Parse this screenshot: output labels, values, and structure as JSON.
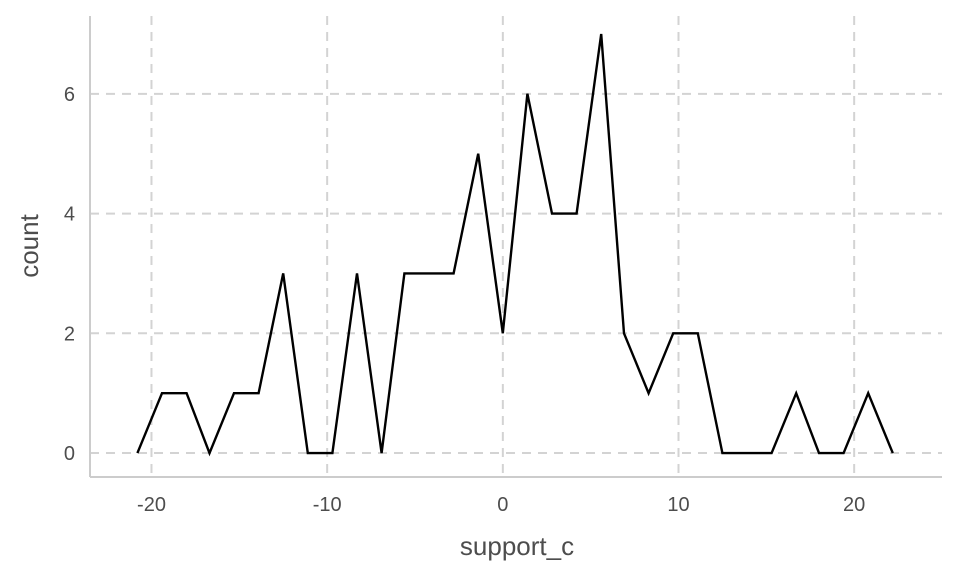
{
  "chart_data": {
    "type": "line",
    "xlabel": "support_c",
    "ylabel": "count",
    "xlim": [
      -23.5,
      25
    ],
    "ylim": [
      -0.4,
      7.3
    ],
    "x_ticks": [
      -20,
      -10,
      0,
      10,
      20
    ],
    "x_tick_labels": [
      "-20",
      "-10",
      "0",
      "10",
      "20"
    ],
    "y_ticks": [
      0,
      2,
      4,
      6
    ],
    "y_tick_labels": [
      "0",
      "2",
      "4",
      "6"
    ],
    "grid": true,
    "series_color": "#000000",
    "grid_color": "#d3d3d3",
    "series": [
      {
        "x": [
          -20.8,
          -19.4,
          -18.0,
          -16.7,
          -15.3,
          -13.9,
          -12.5,
          -11.1,
          -9.7,
          -8.3,
          -6.9,
          -5.6,
          -4.2,
          -2.8,
          -1.4,
          0.0,
          1.4,
          2.8,
          4.2,
          5.6,
          6.9,
          8.3,
          9.7,
          11.1,
          12.5,
          13.9,
          15.3,
          16.7,
          18.0,
          19.4,
          20.8,
          22.2
        ],
        "y": [
          0,
          1,
          1,
          0,
          1,
          1,
          3,
          0,
          0,
          3,
          0,
          3,
          3,
          3,
          5,
          2,
          6,
          4,
          4,
          7,
          2,
          1,
          2,
          2,
          0,
          0,
          0,
          1,
          0,
          0,
          1,
          0
        ]
      }
    ]
  }
}
